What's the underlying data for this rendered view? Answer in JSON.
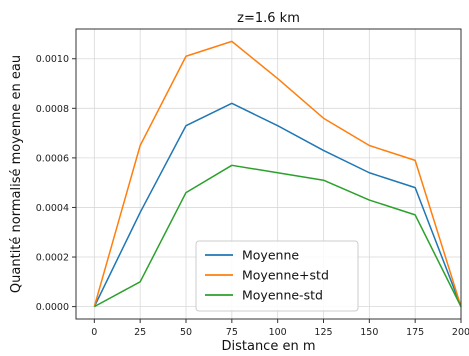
{
  "chart_data": {
    "type": "line",
    "title": "z=1.6 km",
    "xlabel": "Distance en m",
    "ylabel": "Quantité normalisé moyenne en eau",
    "x": [
      0,
      25,
      50,
      75,
      100,
      125,
      150,
      175,
      200
    ],
    "xlim": [
      -10,
      200
    ],
    "ylim": [
      -5e-05,
      0.00112
    ],
    "xticks": [
      0,
      25,
      50,
      75,
      100,
      125,
      150,
      175,
      200
    ],
    "xtick_labels": [
      "0",
      "25",
      "50",
      "75",
      "100",
      "125",
      "150",
      "175",
      "200"
    ],
    "yticks": [
      0.0,
      0.0002,
      0.0004,
      0.0006,
      0.0008,
      0.001
    ],
    "ytick_labels": [
      "0.0000",
      "0.0002",
      "0.0004",
      "0.0006",
      "0.0008",
      "0.0010"
    ],
    "grid": true,
    "legend_position": "lower-center",
    "series": [
      {
        "name": "Moyenne",
        "color": "#1f77b4",
        "values": [
          0.0,
          0.00038,
          0.00073,
          0.00082,
          0.00073,
          0.00063,
          0.00054,
          0.00048,
          0.0
        ]
      },
      {
        "name": "Moyenne+std",
        "color": "#ff7f0e",
        "values": [
          0.0,
          0.00065,
          0.00101,
          0.00107,
          0.00092,
          0.00076,
          0.00065,
          0.00059,
          0.0
        ]
      },
      {
        "name": "Moyenne-std",
        "color": "#2ca02c",
        "values": [
          0.0,
          0.0001,
          0.00046,
          0.00057,
          0.00054,
          0.00051,
          0.00043,
          0.00037,
          0.0
        ]
      }
    ]
  }
}
